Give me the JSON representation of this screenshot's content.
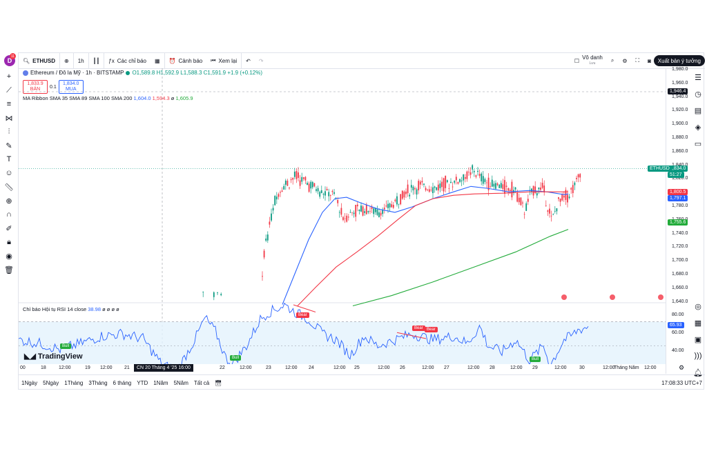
{
  "toolbar": {
    "avatar_letter": "D",
    "notif_count": "11",
    "symbol": "ETHUSD",
    "interval": "1h",
    "indicators_label": "Các chỉ báo",
    "alerts_label": "Cảnh báo",
    "replay_label": "Xem lại",
    "layout_name": "Vô danh",
    "layout_sub": "Lưu",
    "publish_label": "Xuất bản ý tưởng"
  },
  "legend": {
    "title": "Ethereum / Đô la Mỹ · 1h · BITSTAMP",
    "ohlc": "O1,589.8 H1,592.9 L1,588.3 C1,591.9 +1.9 (+0.12%)",
    "sell_price": "1,833.9",
    "sell_label": "BÁN",
    "spread": "0.1",
    "buy_price": "1,834.0",
    "buy_label": "MUA"
  },
  "indicator": {
    "name": "MA Ribbon SMA 35 SMA 89 SMA 100 SMA 200",
    "v1": "1,604.0",
    "v2": "1,594.3",
    "v3": "ø",
    "v4": "1,605.9"
  },
  "rsi": {
    "name": "Chỉ báo Hội tụ RSI 14 close",
    "value": "38.98",
    "extra": "ø ø ø ø",
    "current": "65.93",
    "labels": [
      "80.00",
      "60.00",
      "40.00"
    ]
  },
  "price_scale": {
    "labels": [
      "1,980.0",
      "1,960.0",
      "1,940.0",
      "1,920.0",
      "1,900.0",
      "1,880.0",
      "1,860.0",
      "1,840.0",
      "1,820.0",
      "1,800.0",
      "1,780.0",
      "1,760.0",
      "1,740.0",
      "1,720.0",
      "1,700.0",
      "1,680.0",
      "1,660.0",
      "1,640.0"
    ],
    "alert_price": "1,946.4",
    "symbol_tag": "ETHUSD",
    "last_price": "1,834.0",
    "countdown": "51:27",
    "ma_red": "1,800.5",
    "ma_blue": "1,797.1",
    "ma_green": "1,755.6"
  },
  "time_scale": {
    "labels": [
      "00",
      "18",
      "12:00",
      "19",
      "12:00",
      "21",
      "22",
      "12:00",
      "23",
      "12:00",
      "24",
      "12:00",
      "25",
      "12:00",
      "26",
      "12:00",
      "27",
      "12:00",
      "28",
      "12:00",
      "29",
      "12:00",
      "30",
      "12:00",
      "Tháng Năm",
      "12:00"
    ],
    "crosshair": "CN 20 Tháng 4 '25   16:00"
  },
  "bottom": {
    "ranges": [
      "1Ngày",
      "5Ngày",
      "1Tháng",
      "3Tháng",
      "6 tháng",
      "YTD",
      "1Năm",
      "5Năm",
      "Tất cả"
    ],
    "clock": "17:08:33 UTC+7"
  },
  "signals": {
    "bull": "Bull",
    "bear": "Bear"
  },
  "brand": "TradingView",
  "colors": {
    "up": "#089981",
    "down": "#f23645",
    "sma_blue": "#2962ff",
    "sma_red": "#f23645",
    "sma_green": "#22ab3a",
    "rsi_line": "#2962ff",
    "rsi_band": "#e3f2fd"
  }
}
